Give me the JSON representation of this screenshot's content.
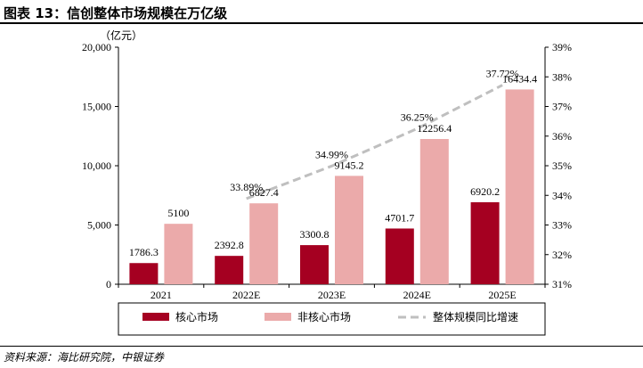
{
  "figure": {
    "title": "图表 13：信创整体市场规模在万亿级",
    "source": "资料来源：海比研究院，中银证券"
  },
  "colors": {
    "core": "#A50021",
    "noncore": "#EBAAAA",
    "trend": "#BFBFBF"
  },
  "chart_data": {
    "type": "bar",
    "unit_label": "（亿元）",
    "categories": [
      "2021",
      "2022E",
      "2023E",
      "2024E",
      "2025E"
    ],
    "series": [
      {
        "name": "核心市场",
        "type": "bar",
        "axis": "left",
        "values": [
          1786.3,
          2392.8,
          3300.8,
          4701.7,
          6920.2
        ]
      },
      {
        "name": "非核心市场",
        "type": "bar",
        "axis": "left",
        "values": [
          5100,
          6827.4,
          9145.2,
          12256.4,
          16434.4
        ]
      },
      {
        "name": "整体规模同比增速",
        "type": "line",
        "axis": "right",
        "style": "dashed",
        "values": [
          null,
          33.89,
          34.99,
          36.25,
          37.72
        ]
      }
    ],
    "bar_labels": {
      "core": [
        "1786.3",
        "2392.8",
        "3300.8",
        "4701.7",
        "6920.2"
      ],
      "noncore": [
        "5100",
        "6827.4",
        "9145.2",
        "12256.4",
        "16434.4"
      ]
    },
    "line_labels": [
      null,
      "33.89%",
      "34.99%",
      "36.25%",
      "37.72%"
    ],
    "y_left": {
      "min": 0,
      "max": 20000,
      "ticks": [
        0,
        5000,
        10000,
        15000,
        20000
      ],
      "tick_labels": [
        "0",
        "5,000",
        "10,000",
        "15,000",
        "20,000"
      ]
    },
    "y_right": {
      "min": 31,
      "max": 39,
      "ticks": [
        31,
        32,
        33,
        34,
        35,
        36,
        37,
        38,
        39
      ],
      "tick_labels": [
        "31%",
        "32%",
        "33%",
        "34%",
        "35%",
        "36%",
        "37%",
        "38%",
        "39%"
      ]
    },
    "legend": {
      "position": "bottom",
      "items": [
        "核心市场",
        "非核心市场",
        "整体规模同比增速"
      ]
    },
    "grid": false
  }
}
